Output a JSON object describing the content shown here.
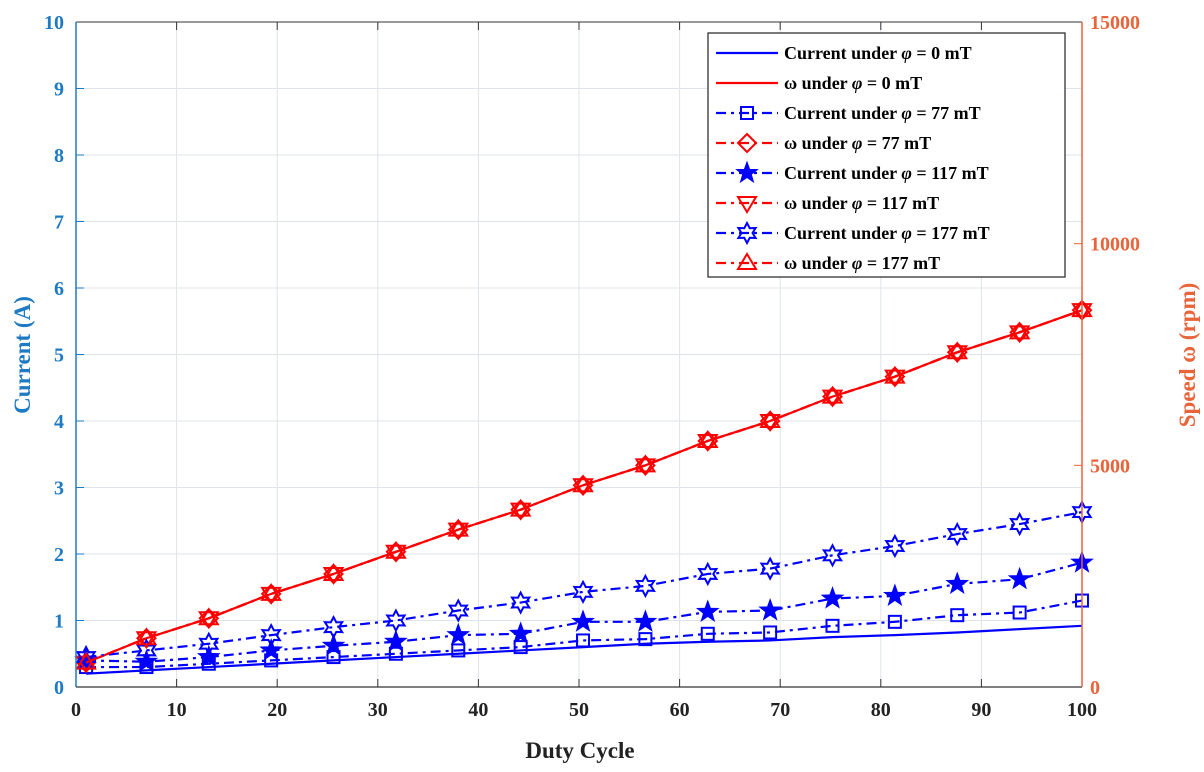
{
  "colors": {
    "left_axis": "#1f7ac4",
    "right_axis": "#e8643a",
    "current": "#0000ff",
    "speed": "#ff0000",
    "grid": "#dfe4ea"
  },
  "chart_data": {
    "type": "line",
    "xlabel": "Duty Cycle",
    "ylabel_left": "Current (A)",
    "ylabel_right": "Speed ω (rpm)",
    "xlim": [
      0,
      100
    ],
    "ylim_left": [
      0,
      10
    ],
    "ylim_right": [
      0,
      15000
    ],
    "x_ticks": [
      "0",
      "10",
      "20",
      "30",
      "40",
      "50",
      "60",
      "70",
      "80",
      "90",
      "100"
    ],
    "y_left_ticks": [
      "0",
      "1",
      "2",
      "3",
      "4",
      "5",
      "6",
      "7",
      "8",
      "9",
      "10"
    ],
    "y_right_ticks": [
      "0",
      "5000",
      "10000",
      "15000"
    ],
    "grid": true,
    "legend_position": "top-right",
    "x": [
      1,
      7,
      13.2,
      19.4,
      25.6,
      31.8,
      38,
      44.2,
      50.4,
      56.6,
      62.8,
      69,
      75.2,
      81.4,
      87.6,
      93.8,
      100
    ],
    "series": [
      {
        "name": "Current under φ = 0 mT",
        "legend_prefix": "Current under ",
        "legend_suffix": " = 0 mT",
        "axis": "left",
        "style": "solid",
        "marker": "none",
        "values": [
          0.2,
          0.25,
          0.3,
          0.35,
          0.4,
          0.45,
          0.5,
          0.55,
          0.6,
          0.65,
          0.68,
          0.7,
          0.75,
          0.78,
          0.82,
          0.87,
          0.92
        ]
      },
      {
        "name": "ω under φ = 0 mT",
        "legend_prefix": "ω under ",
        "legend_suffix": " = 0 mT",
        "axis": "right",
        "style": "solid",
        "marker": "none",
        "values": [
          550,
          1100,
          1550,
          2100,
          2550,
          3050,
          3550,
          4000,
          4550,
          5000,
          5550,
          6000,
          6550,
          7000,
          7550,
          8000,
          8500
        ]
      },
      {
        "name": "Current under φ = 77 mT",
        "legend_prefix": "Current under ",
        "legend_suffix": " = 77 mT",
        "axis": "left",
        "style": "dashdot",
        "marker": "square",
        "values": [
          0.3,
          0.3,
          0.35,
          0.4,
          0.45,
          0.5,
          0.55,
          0.6,
          0.7,
          0.72,
          0.8,
          0.82,
          0.92,
          0.98,
          1.08,
          1.12,
          1.3
        ]
      },
      {
        "name": "ω under φ = 77 mT",
        "legend_prefix": "ω under ",
        "legend_suffix": " = 77 mT",
        "axis": "right",
        "style": "dashdot",
        "marker": "diamond",
        "values": [
          550,
          1100,
          1550,
          2100,
          2550,
          3050,
          3550,
          4000,
          4550,
          5000,
          5550,
          6000,
          6550,
          7000,
          7550,
          8000,
          8500
        ]
      },
      {
        "name": "Current under φ = 117 mT",
        "legend_prefix": "Current under ",
        "legend_suffix": " = 117 mT",
        "axis": "left",
        "style": "dashdot",
        "marker": "star5",
        "values": [
          0.4,
          0.38,
          0.45,
          0.55,
          0.62,
          0.68,
          0.78,
          0.8,
          0.98,
          0.98,
          1.13,
          1.15,
          1.33,
          1.37,
          1.55,
          1.62,
          1.87
        ]
      },
      {
        "name": "ω under φ = 117 mT",
        "legend_prefix": "ω under ",
        "legend_suffix": " = 117 mT",
        "axis": "right",
        "style": "dashdot",
        "marker": "triangle-down",
        "values": [
          550,
          1100,
          1550,
          2100,
          2550,
          3050,
          3550,
          4000,
          4550,
          5000,
          5550,
          6000,
          6550,
          7000,
          7550,
          8000,
          8500
        ]
      },
      {
        "name": "Current under φ = 177 mT",
        "legend_prefix": "Current under ",
        "legend_suffix": " = 177 mT",
        "axis": "left",
        "style": "dashdot",
        "marker": "star6",
        "values": [
          0.45,
          0.55,
          0.65,
          0.78,
          0.9,
          1.0,
          1.15,
          1.27,
          1.43,
          1.52,
          1.7,
          1.78,
          1.98,
          2.12,
          2.3,
          2.45,
          2.63
        ]
      },
      {
        "name": "ω under φ = 177 mT",
        "legend_prefix": "ω under ",
        "legend_suffix": " = 177 mT",
        "axis": "right",
        "style": "dashdot",
        "marker": "triangle-up",
        "values": [
          550,
          1100,
          1550,
          2100,
          2550,
          3050,
          3550,
          4000,
          4550,
          5000,
          5550,
          6000,
          6550,
          7000,
          7550,
          8000,
          8500
        ]
      }
    ]
  }
}
